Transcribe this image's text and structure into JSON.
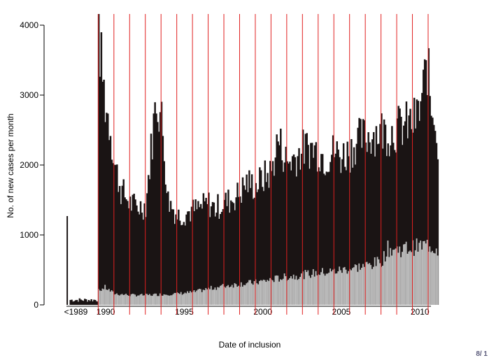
{
  "chart_data": {
    "type": "bar",
    "title": "",
    "xlabel": "Date of inclusion",
    "ylabel": "No. of new cases per month",
    "ylim": [
      0,
      4000
    ],
    "y_ticks": [
      0,
      1000,
      2000,
      3000,
      4000
    ],
    "y_tick_labels": [
      "0",
      "1000",
      "2000",
      "3000",
      "4000"
    ],
    "x_tick_labels": [
      "<1989",
      "1990",
      "1995",
      "2000",
      "2005",
      "2010"
    ],
    "x_range": [
      1988,
      2012
    ],
    "grid": false,
    "stacked": false,
    "series": [
      {
        "name": "",
        "color": "#1a1414",
        "points": [
          [
            "pre-1989",
            1270
          ],
          [
            "1989",
            60
          ],
          [
            "1990-01",
            4150
          ],
          [
            "1990-02",
            3650
          ],
          [
            "1990-06",
            2880
          ],
          [
            "1990-10",
            2520
          ],
          [
            "1991-01",
            2020
          ],
          [
            "1991-06",
            1650
          ],
          [
            "1992-01",
            1450
          ],
          [
            "1992-06",
            1400
          ],
          [
            "1993-01",
            1420
          ],
          [
            "1993-06",
            2400
          ],
          [
            "1993-09",
            2960
          ],
          [
            "1994-01",
            2650
          ],
          [
            "1994-06",
            1500
          ],
          [
            "1995-01",
            1280
          ],
          [
            "1995-06",
            1300
          ],
          [
            "1996-01",
            1350
          ],
          [
            "1996-06",
            1380
          ],
          [
            "1997-01",
            1450
          ],
          [
            "1997-06",
            1380
          ],
          [
            "1998-01",
            1460
          ],
          [
            "1998-06",
            1500
          ],
          [
            "1999-01",
            1600
          ],
          [
            "1999-06",
            1750
          ],
          [
            "2000-01",
            1700
          ],
          [
            "2000-06",
            1800
          ],
          [
            "2001-01",
            1900
          ],
          [
            "2001-06",
            2370
          ],
          [
            "2002-01",
            2030
          ],
          [
            "2002-06",
            2100
          ],
          [
            "2003-01",
            2220
          ],
          [
            "2003-06",
            2250
          ],
          [
            "2004-01",
            2200
          ],
          [
            "2004-06",
            2100
          ],
          [
            "2005-01",
            2200
          ],
          [
            "2005-06",
            2120
          ],
          [
            "2006-01",
            2200
          ],
          [
            "2006-06",
            2350
          ],
          [
            "2007-01",
            2400
          ],
          [
            "2007-06",
            2450
          ],
          [
            "2008-01",
            2500
          ],
          [
            "2008-06",
            2450
          ],
          [
            "2009-01",
            2520
          ],
          [
            "2009-06",
            2560
          ],
          [
            "2010-01",
            2600
          ],
          [
            "2010-06",
            2750
          ],
          [
            "2010-12",
            3440
          ],
          [
            "2011-03",
            2800
          ],
          [
            "2011-06",
            2760
          ],
          [
            "2011-08",
            2180
          ]
        ]
      },
      {
        "name": "",
        "color": "#bdbdbd",
        "points": [
          [
            "1990-01",
            200
          ],
          [
            "1990-06",
            250
          ],
          [
            "1991-01",
            160
          ],
          [
            "1992-01",
            140
          ],
          [
            "1993-01",
            140
          ],
          [
            "1994-01",
            150
          ],
          [
            "1995-01",
            160
          ],
          [
            "1996-01",
            180
          ],
          [
            "1997-01",
            230
          ],
          [
            "1998-01",
            270
          ],
          [
            "1999-01",
            300
          ],
          [
            "2000-01",
            320
          ],
          [
            "2001-01",
            360
          ],
          [
            "2002-01",
            400
          ],
          [
            "2003-01",
            430
          ],
          [
            "2004-01",
            460
          ],
          [
            "2005-01",
            480
          ],
          [
            "2006-01",
            520
          ],
          [
            "2007-01",
            560
          ],
          [
            "2008-01",
            620
          ],
          [
            "2008-06",
            800
          ],
          [
            "2009-01",
            790
          ],
          [
            "2010-01",
            820
          ],
          [
            "2011-01",
            860
          ],
          [
            "2011-08",
            800
          ]
        ]
      }
    ],
    "vertical_line_color": "#e02020"
  },
  "page_number": "8/ 1"
}
